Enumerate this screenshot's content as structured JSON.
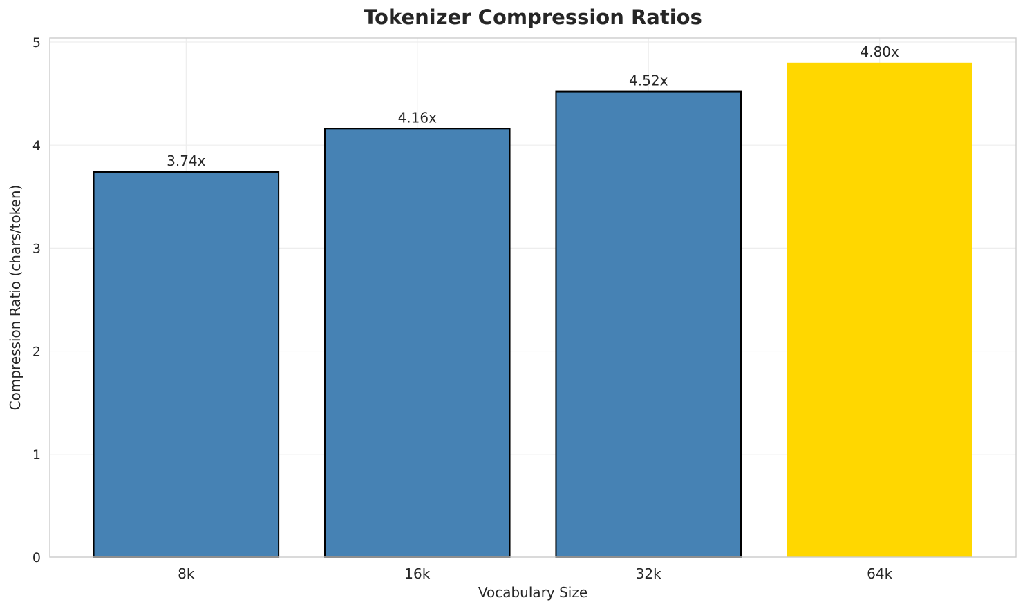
{
  "chart_data": {
    "type": "bar",
    "title": "Tokenizer Compression Ratios",
    "xlabel": "Vocabulary Size",
    "ylabel": "Compression Ratio (chars/token)",
    "categories": [
      "8k",
      "16k",
      "32k",
      "64k"
    ],
    "values": [
      3.74,
      4.16,
      4.52,
      4.8
    ],
    "bar_labels": [
      "3.74x",
      "4.16x",
      "4.52x",
      "4.80x"
    ],
    "yticks": [
      0,
      1,
      2,
      3,
      4,
      5
    ],
    "ylim": [
      0,
      5.04
    ],
    "grid": true,
    "legend": "none",
    "bar_colors": [
      "#4682B4",
      "#4682B4",
      "#4682B4",
      "#FFD700"
    ],
    "bar_edge_colors": [
      "#000000",
      "#000000",
      "#000000",
      "none"
    ],
    "highlight_index": 3
  },
  "colors": {
    "background": "#ffffff",
    "text": "#262626",
    "grid": "#ededed",
    "spine": "#cccccc",
    "bar_default": "#4682B4",
    "bar_highlight": "#FFD700",
    "bar_edge": "#000000"
  }
}
